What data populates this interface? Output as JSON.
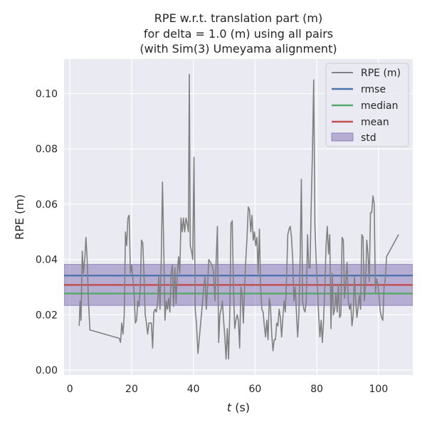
{
  "chart_data": {
    "type": "line",
    "title_lines": [
      "RPE w.r.t. translation part (m)",
      "for delta = 1.0 (m) using all pairs",
      "(with Sim(3) Umeyama alignment)"
    ],
    "xlabel_italic": "t",
    "xlabel_rest": " (s)",
    "ylabel": "RPE (m)",
    "xlim": [
      -1.9,
      111.1
    ],
    "ylim": [
      -0.0018,
      0.1125
    ],
    "x_ticks": [
      0,
      20,
      40,
      60,
      80,
      100
    ],
    "y_ticks": [
      0.0,
      0.02,
      0.04,
      0.06,
      0.08,
      0.1
    ],
    "y_tick_labels": [
      "0.00",
      "0.02",
      "0.04",
      "0.06",
      "0.08",
      "0.10"
    ],
    "grid": true,
    "legend_position": "top-right",
    "series": [
      {
        "name": "RPE (m)",
        "color": "#808080",
        "points": [
          [
            3.0,
            0.016
          ],
          [
            3.3,
            0.025
          ],
          [
            3.6,
            0.018
          ],
          [
            4.0,
            0.043
          ],
          [
            4.4,
            0.035
          ],
          [
            4.8,
            0.04
          ],
          [
            5.2,
            0.048
          ],
          [
            5.6,
            0.04
          ],
          [
            6.0,
            0.025
          ],
          [
            6.5,
            0.0145
          ],
          [
            16.0,
            0.0115
          ],
          [
            16.4,
            0.01
          ],
          [
            16.8,
            0.017
          ],
          [
            17.2,
            0.013
          ],
          [
            17.6,
            0.02
          ],
          [
            18.0,
            0.05
          ],
          [
            18.4,
            0.045
          ],
          [
            18.8,
            0.055
          ],
          [
            19.2,
            0.056
          ],
          [
            19.6,
            0.035
          ],
          [
            20.0,
            0.038
          ],
          [
            20.4,
            0.033
          ],
          [
            20.8,
            0.028
          ],
          [
            21.2,
            0.017
          ],
          [
            21.6,
            0.018
          ],
          [
            22.0,
            0.025
          ],
          [
            22.4,
            0.023
          ],
          [
            22.8,
            0.03
          ],
          [
            23.2,
            0.047
          ],
          [
            23.6,
            0.046
          ],
          [
            24.0,
            0.035
          ],
          [
            24.4,
            0.02
          ],
          [
            24.8,
            0.017
          ],
          [
            25.2,
            0.013
          ],
          [
            25.6,
            0.017
          ],
          [
            26.0,
            0.017
          ],
          [
            26.4,
            0.017
          ],
          [
            26.8,
            0.008
          ],
          [
            27.2,
            0.021
          ],
          [
            27.6,
            0.022
          ],
          [
            28.0,
            0.021
          ],
          [
            28.4,
            0.024
          ],
          [
            28.8,
            0.034
          ],
          [
            29.2,
            0.022
          ],
          [
            29.6,
            0.04
          ],
          [
            30.0,
            0.068
          ],
          [
            30.4,
            0.045
          ],
          [
            30.8,
            0.018
          ],
          [
            31.2,
            0.025
          ],
          [
            31.6,
            0.022
          ],
          [
            32.0,
            0.026
          ],
          [
            32.4,
            0.021
          ],
          [
            32.8,
            0.035
          ],
          [
            33.2,
            0.038
          ],
          [
            33.6,
            0.023
          ],
          [
            34.0,
            0.037
          ],
          [
            34.4,
            0.024
          ],
          [
            34.8,
            0.035
          ],
          [
            35.2,
            0.041
          ],
          [
            35.6,
            0.035
          ],
          [
            36.0,
            0.055
          ],
          [
            36.4,
            0.05
          ],
          [
            36.8,
            0.055
          ],
          [
            37.2,
            0.05
          ],
          [
            37.6,
            0.055
          ],
          [
            38.0,
            0.053
          ],
          [
            38.4,
            0.05
          ],
          [
            38.7,
            0.107
          ],
          [
            39.0,
            0.045
          ],
          [
            39.4,
            0.043
          ],
          [
            39.8,
            0.04
          ],
          [
            40.2,
            0.077
          ],
          [
            40.6,
            0.022
          ],
          [
            41.0,
            0.017
          ],
          [
            41.5,
            0.006
          ],
          [
            43.0,
            0.025
          ],
          [
            43.4,
            0.03
          ],
          [
            43.8,
            0.034
          ],
          [
            44.2,
            0.022
          ],
          [
            44.6,
            0.03
          ],
          [
            45.0,
            0.04
          ],
          [
            46.0,
            0.038
          ],
          [
            46.5,
            0.036
          ],
          [
            47.0,
            0.025
          ],
          [
            47.4,
            0.04
          ],
          [
            47.8,
            0.052
          ],
          [
            48.2,
            0.01
          ],
          [
            48.6,
            0.02
          ],
          [
            49.0,
            0.022
          ],
          [
            49.4,
            0.025
          ],
          [
            49.8,
            0.018
          ],
          [
            50.2,
            0.012
          ],
          [
            50.6,
            0.004
          ],
          [
            51.0,
            0.015
          ],
          [
            51.4,
            0.004
          ],
          [
            51.8,
            0.02
          ],
          [
            52.2,
            0.053
          ],
          [
            52.6,
            0.054
          ],
          [
            53.0,
            0.03
          ],
          [
            53.4,
            0.015
          ],
          [
            53.8,
            0.018
          ],
          [
            54.2,
            0.02
          ],
          [
            54.6,
            0.018
          ],
          [
            55.0,
            0.008
          ],
          [
            55.4,
            0.03
          ],
          [
            55.8,
            0.027
          ],
          [
            56.2,
            0.017
          ],
          [
            56.6,
            0.03
          ],
          [
            57.0,
            0.04
          ],
          [
            57.4,
            0.048
          ],
          [
            57.8,
            0.059
          ],
          [
            58.2,
            0.058
          ],
          [
            58.6,
            0.05
          ],
          [
            59.0,
            0.056
          ],
          [
            59.4,
            0.047
          ],
          [
            59.8,
            0.05
          ],
          [
            60.2,
            0.045
          ],
          [
            60.6,
            0.048
          ],
          [
            61.0,
            0.035
          ],
          [
            61.4,
            0.051
          ],
          [
            61.8,
            0.03
          ],
          [
            62.2,
            0.022
          ],
          [
            62.6,
            0.021
          ],
          [
            63.0,
            0.016
          ],
          [
            63.4,
            0.012
          ],
          [
            63.8,
            0.018
          ],
          [
            64.2,
            0.011
          ],
          [
            64.6,
            0.026
          ],
          [
            65.0,
            0.023
          ],
          [
            65.4,
            0.013
          ],
          [
            65.8,
            0.007
          ],
          [
            66.2,
            0.011
          ],
          [
            66.6,
            0.011
          ],
          [
            67.0,
            0.017
          ],
          [
            67.4,
            0.016
          ],
          [
            67.8,
            0.022
          ],
          [
            68.2,
            0.019
          ],
          [
            68.6,
            0.012
          ],
          [
            69.0,
            0.019
          ],
          [
            69.4,
            0.025
          ],
          [
            69.8,
            0.021
          ],
          [
            70.2,
            0.033
          ],
          [
            70.6,
            0.049
          ],
          [
            71.0,
            0.051
          ],
          [
            71.4,
            0.052
          ],
          [
            71.8,
            0.048
          ],
          [
            72.2,
            0.04
          ],
          [
            72.6,
            0.025
          ],
          [
            73.0,
            0.03
          ],
          [
            73.4,
            0.021
          ],
          [
            73.8,
            0.012
          ],
          [
            74.2,
            0.02
          ],
          [
            74.6,
            0.04
          ],
          [
            75.0,
            0.069
          ],
          [
            75.4,
            0.025
          ],
          [
            75.8,
            0.022
          ],
          [
            76.2,
            0.021
          ],
          [
            76.6,
            0.025
          ],
          [
            77.0,
            0.049
          ],
          [
            77.4,
            0.037
          ],
          [
            77.8,
            0.037
          ],
          [
            78.2,
            0.06
          ],
          [
            78.6,
            0.079
          ],
          [
            79.0,
            0.105
          ],
          [
            79.4,
            0.052
          ],
          [
            79.8,
            0.04
          ],
          [
            80.2,
            0.03
          ],
          [
            80.6,
            0.02
          ],
          [
            81.0,
            0.012
          ],
          [
            81.4,
            0.018
          ],
          [
            81.8,
            0.01
          ],
          [
            82.2,
            0.018
          ],
          [
            82.6,
            0.03
          ],
          [
            83.0,
            0.045
          ],
          [
            83.4,
            0.052
          ],
          [
            83.8,
            0.042
          ],
          [
            84.2,
            0.049
          ],
          [
            84.6,
            0.015
          ],
          [
            85.0,
            0.035
          ],
          [
            85.4,
            0.02
          ],
          [
            85.8,
            0.022
          ],
          [
            86.2,
            0.028
          ],
          [
            86.6,
            0.021
          ],
          [
            87.0,
            0.031
          ],
          [
            87.4,
            0.019
          ],
          [
            87.8,
            0.02
          ],
          [
            88.2,
            0.048
          ],
          [
            88.6,
            0.047
          ],
          [
            89.0,
            0.026
          ],
          [
            89.4,
            0.031
          ],
          [
            89.8,
            0.039
          ],
          [
            90.2,
            0.025
          ],
          [
            90.6,
            0.022
          ],
          [
            91.0,
            0.024
          ],
          [
            91.4,
            0.016
          ],
          [
            91.8,
            0.02
          ],
          [
            92.2,
            0.034
          ],
          [
            92.6,
            0.025
          ],
          [
            93.0,
            0.019
          ],
          [
            93.4,
            0.023
          ],
          [
            93.8,
            0.027
          ],
          [
            94.2,
            0.022
          ],
          [
            94.6,
            0.049
          ],
          [
            95.0,
            0.048
          ],
          [
            95.4,
            0.025
          ],
          [
            95.8,
            0.031
          ],
          [
            96.2,
            0.047
          ],
          [
            96.6,
            0.042
          ],
          [
            97.0,
            0.032
          ],
          [
            97.4,
            0.057
          ],
          [
            97.8,
            0.057
          ],
          [
            98.2,
            0.063
          ],
          [
            98.6,
            0.06
          ],
          [
            99.0,
            0.028
          ],
          [
            99.4,
            0.033
          ],
          [
            99.8,
            0.031
          ],
          [
            100.2,
            0.026
          ],
          [
            100.6,
            0.021
          ],
          [
            101.0,
            0.019
          ],
          [
            101.4,
            0.018
          ],
          [
            101.8,
            0.03
          ],
          [
            102.2,
            0.033
          ],
          [
            102.6,
            0.041
          ],
          [
            106.5,
            0.049
          ]
        ]
      },
      {
        "name": "rmse",
        "color": "#4c72b0",
        "value": 0.0342
      },
      {
        "name": "median",
        "color": "#55a868",
        "value": 0.0277
      },
      {
        "name": "mean",
        "color": "#c44e52",
        "value": 0.0308
      },
      {
        "name": "std",
        "color": "#8172b2",
        "band": [
          0.0234,
          0.0382
        ]
      }
    ]
  }
}
